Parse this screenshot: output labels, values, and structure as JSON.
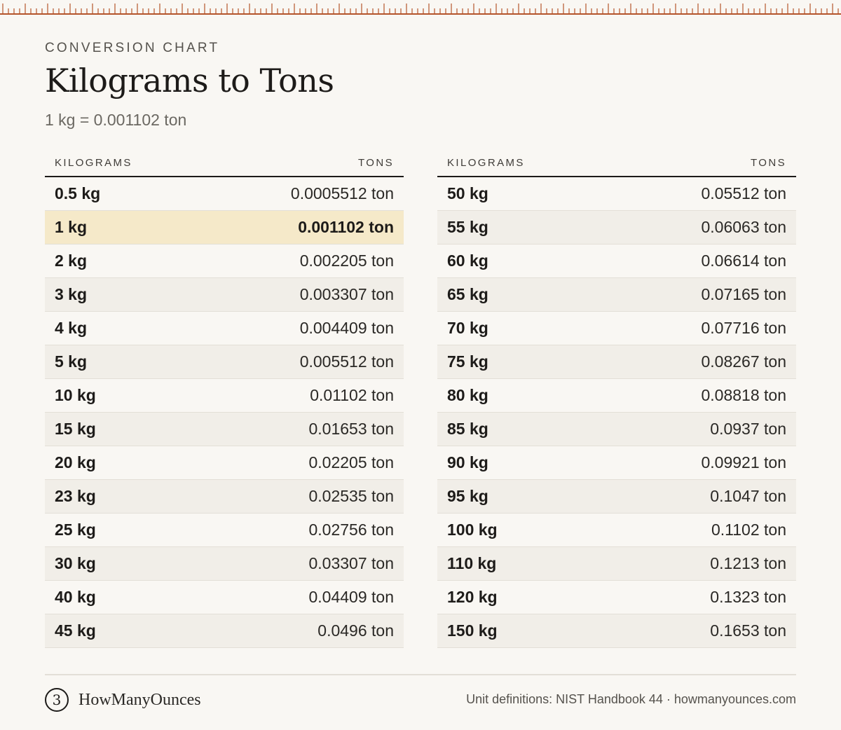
{
  "header": {
    "eyebrow": "CONVERSION CHART",
    "title": "Kilograms to Tons",
    "subtitle": "1 kg = 0.001102 ton"
  },
  "table_left": {
    "col_kg": "KILOGRAMS",
    "col_ton": "TONS",
    "rows": [
      {
        "kg": "0.5 kg",
        "ton": "0.0005512 ton"
      },
      {
        "kg": "1 kg",
        "ton": "0.001102 ton",
        "highlight": true
      },
      {
        "kg": "2 kg",
        "ton": "0.002205 ton"
      },
      {
        "kg": "3 kg",
        "ton": "0.003307 ton"
      },
      {
        "kg": "4 kg",
        "ton": "0.004409 ton"
      },
      {
        "kg": "5 kg",
        "ton": "0.005512 ton"
      },
      {
        "kg": "10 kg",
        "ton": "0.01102 ton"
      },
      {
        "kg": "15 kg",
        "ton": "0.01653 ton"
      },
      {
        "kg": "20 kg",
        "ton": "0.02205 ton"
      },
      {
        "kg": "23 kg",
        "ton": "0.02535 ton"
      },
      {
        "kg": "25 kg",
        "ton": "0.02756 ton"
      },
      {
        "kg": "30 kg",
        "ton": "0.03307 ton"
      },
      {
        "kg": "40 kg",
        "ton": "0.04409 ton"
      },
      {
        "kg": "45 kg",
        "ton": "0.0496 ton"
      }
    ]
  },
  "table_right": {
    "col_kg": "KILOGRAMS",
    "col_ton": "TONS",
    "rows": [
      {
        "kg": "50 kg",
        "ton": "0.05512 ton"
      },
      {
        "kg": "55 kg",
        "ton": "0.06063 ton"
      },
      {
        "kg": "60 kg",
        "ton": "0.06614 ton"
      },
      {
        "kg": "65 kg",
        "ton": "0.07165 ton"
      },
      {
        "kg": "70 kg",
        "ton": "0.07716 ton"
      },
      {
        "kg": "75 kg",
        "ton": "0.08267 ton"
      },
      {
        "kg": "80 kg",
        "ton": "0.08818 ton"
      },
      {
        "kg": "85 kg",
        "ton": "0.0937 ton"
      },
      {
        "kg": "90 kg",
        "ton": "0.09921 ton"
      },
      {
        "kg": "95 kg",
        "ton": "0.1047 ton"
      },
      {
        "kg": "100 kg",
        "ton": "0.1102 ton"
      },
      {
        "kg": "110 kg",
        "ton": "0.1213 ton"
      },
      {
        "kg": "120 kg",
        "ton": "0.1323 ton"
      },
      {
        "kg": "150 kg",
        "ton": "0.1653 ton"
      }
    ]
  },
  "footer": {
    "logo_glyph": "3",
    "brand": "HowManyOunces",
    "credit": "Unit definitions: NIST Handbook 44 · howmanyounces.com"
  },
  "colors": {
    "ruler": "#b5552b",
    "highlight": "#f5e9c9",
    "background": "#f9f7f3"
  }
}
